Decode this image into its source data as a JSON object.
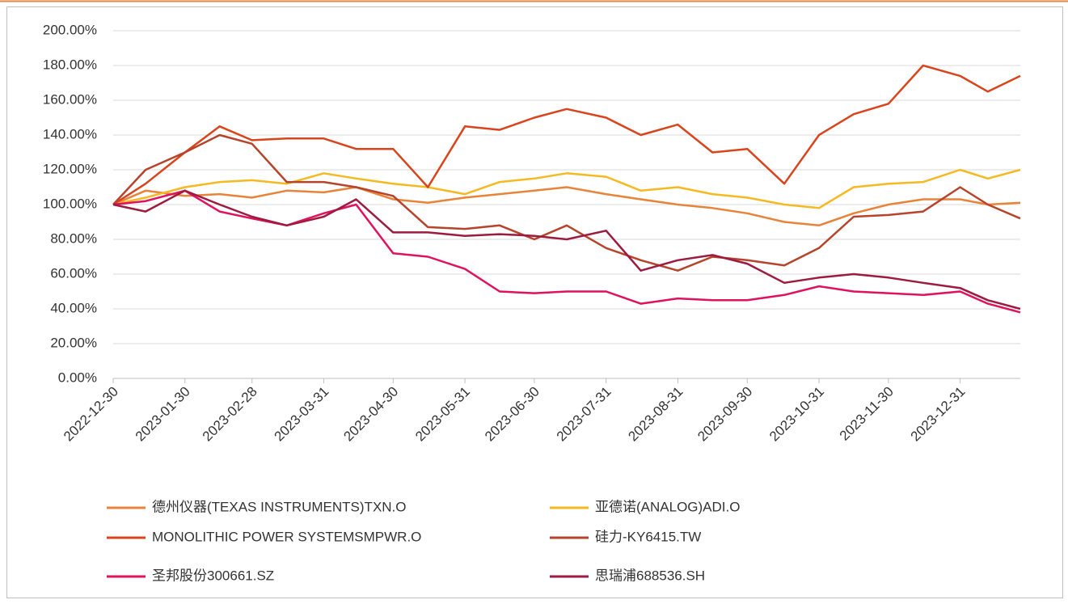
{
  "chart_data": {
    "type": "line",
    "x": [
      "2022-12-30",
      "2023-01-13",
      "2023-01-30",
      "2023-02-14",
      "2023-02-28",
      "2023-03-15",
      "2023-03-31",
      "2023-04-14",
      "2023-04-30",
      "2023-05-15",
      "2023-05-31",
      "2023-06-15",
      "2023-06-30",
      "2023-07-14",
      "2023-07-31",
      "2023-08-15",
      "2023-08-31",
      "2023-09-15",
      "2023-09-30",
      "2023-10-16",
      "2023-10-31",
      "2023-11-15",
      "2023-11-30",
      "2023-12-15",
      "2023-12-31",
      "2024-01-12",
      "2024-01-26"
    ],
    "series": [
      {
        "name": "德州仪器(TEXAS INSTRUMENTS)TXN.O",
        "color": "#e8833a",
        "values": [
          100,
          108,
          105,
          106,
          104,
          108,
          107,
          110,
          103,
          101,
          104,
          106,
          108,
          110,
          106,
          103,
          100,
          98,
          95,
          90,
          88,
          95,
          100,
          103,
          103,
          100,
          101
        ]
      },
      {
        "name": "亚德诺(ANALOG)ADI.O",
        "color": "#f5b921",
        "values": [
          100,
          104,
          110,
          113,
          114,
          112,
          118,
          115,
          112,
          110,
          106,
          113,
          115,
          118,
          116,
          108,
          110,
          106,
          104,
          100,
          98,
          110,
          112,
          113,
          120,
          115,
          120
        ]
      },
      {
        "name": "MONOLITHIC POWER SYSTEMSMPWR.O",
        "color": "#d9441c",
        "values": [
          100,
          112,
          130,
          145,
          137,
          138,
          138,
          132,
          132,
          110,
          145,
          143,
          150,
          155,
          150,
          140,
          146,
          130,
          132,
          112,
          140,
          152,
          158,
          180,
          174,
          165,
          174
        ]
      },
      {
        "name": "硅力-KY6415.TW",
        "color": "#b5442a",
        "values": [
          100,
          120,
          130,
          140,
          135,
          113,
          113,
          110,
          105,
          87,
          86,
          88,
          80,
          88,
          75,
          68,
          62,
          70,
          68,
          65,
          75,
          93,
          94,
          96,
          110,
          100,
          92
        ]
      },
      {
        "name": "圣邦股份300661.SZ",
        "color": "#e0125e",
        "values": [
          100,
          102,
          108,
          96,
          92,
          88,
          95,
          100,
          72,
          70,
          63,
          50,
          49,
          50,
          50,
          43,
          46,
          45,
          45,
          48,
          53,
          50,
          49,
          48,
          50,
          43,
          38
        ]
      },
      {
        "name": "思瑞浦688536.SH",
        "color": "#9c1b3f",
        "values": [
          100,
          96,
          108,
          100,
          93,
          88,
          93,
          103,
          84,
          84,
          82,
          83,
          82,
          80,
          85,
          62,
          68,
          71,
          66,
          55,
          58,
          60,
          58,
          55,
          52,
          45,
          40
        ]
      }
    ],
    "xlim": [
      "2022-12-30",
      "2024-01-26"
    ],
    "xticks": [
      "2022-12-30",
      "2023-01-30",
      "2023-02-28",
      "2023-03-31",
      "2023-04-30",
      "2023-05-31",
      "2023-06-30",
      "2023-07-31",
      "2023-08-31",
      "2023-09-30",
      "2023-10-31",
      "2023-11-30",
      "2023-12-31"
    ],
    "ylim": [
      0,
      200
    ],
    "yticks": [
      {
        "value": 0,
        "label": "0.00%"
      },
      {
        "value": 20,
        "label": "20.00%"
      },
      {
        "value": 40,
        "label": "40.00%"
      },
      {
        "value": 60,
        "label": "60.00%"
      },
      {
        "value": 80,
        "label": "80.00%"
      },
      {
        "value": 100,
        "label": "100.00%"
      },
      {
        "value": 120,
        "label": "120.00%"
      },
      {
        "value": 140,
        "label": "140.00%"
      },
      {
        "value": 160,
        "label": "160.00%"
      },
      {
        "value": 180,
        "label": "180.00%"
      },
      {
        "value": 200,
        "label": "200.00%"
      }
    ],
    "grid": true
  }
}
